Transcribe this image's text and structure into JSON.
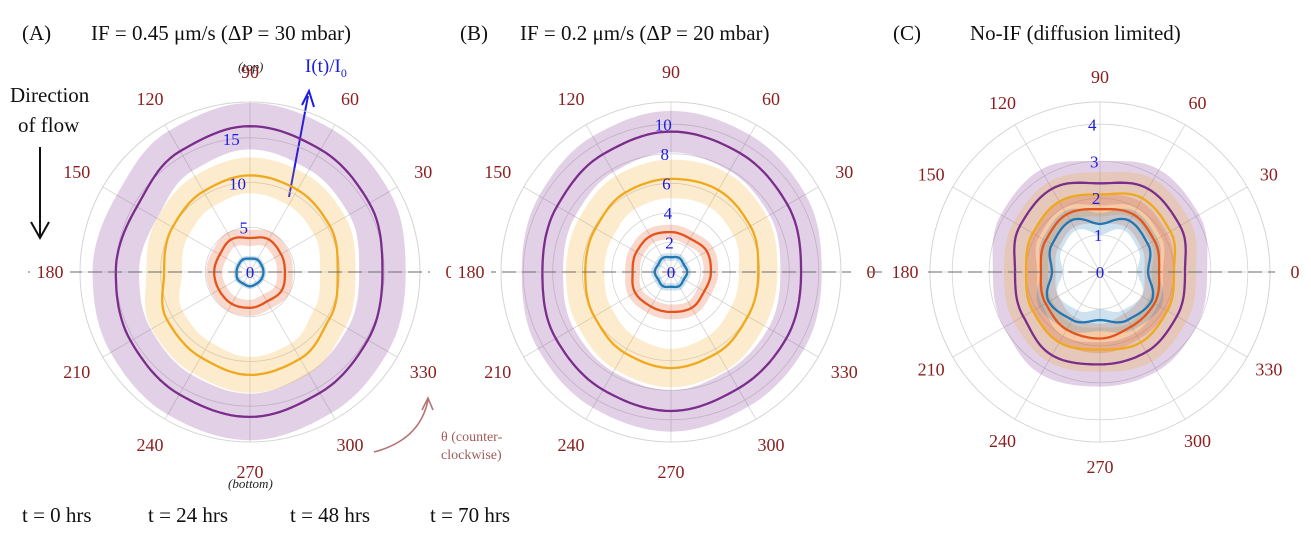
{
  "chart_data": [
    {
      "type": "polar",
      "panel_label": "(A)",
      "title": "IF = 0.45 μm/s (ΔP = 30 mbar)",
      "angle_ticks": [
        "0",
        "30",
        "60",
        "90",
        "120",
        "150",
        "180",
        "210",
        "240",
        "270",
        "300",
        "330"
      ],
      "radial_ticks": [
        "0",
        "5",
        "10",
        "15"
      ],
      "r_max": 19,
      "radial_axis_label": "I(t)/I",
      "radial_axis_label_sub": "0",
      "annotation_top": "(top)",
      "annotation_bottom": "(bottom)",
      "theta_note_line1": "θ (counter-",
      "theta_note_line2": "clockwise)",
      "series": [
        {
          "color": "#1f77b4",
          "band": 0.3,
          "r": [
            1.5,
            1.5,
            1.6,
            1.5,
            1.6,
            1.5,
            1.5,
            1.6,
            1.5,
            1.6,
            1.5,
            1.5
          ]
        },
        {
          "color": "#e3541c",
          "band": 0.9,
          "r": [
            3.9,
            4.0,
            4.2,
            3.8,
            4.2,
            3.9,
            4.0,
            4.0,
            4.1,
            4.0,
            3.8,
            4.1
          ]
        },
        {
          "color": "#f0a81c",
          "band": 2.0,
          "r": [
            9.8,
            10.3,
            10.6,
            10.8,
            10.4,
            10.0,
            9.6,
            10.7,
            11.0,
            11.5,
            11.2,
            10.3
          ]
        },
        {
          "color": "#7b2d8b",
          "band": 2.6,
          "r": [
            14.8,
            15.4,
            15.8,
            16.3,
            15.6,
            14.6,
            15.0,
            15.4,
            15.8,
            16.2,
            15.6,
            15.2
          ]
        }
      ]
    },
    {
      "type": "polar",
      "panel_label": "(B)",
      "title": "IF = 0.2 μm/s (ΔP = 20 mbar)",
      "angle_ticks": [
        "0",
        "30",
        "60",
        "90",
        "120",
        "150",
        "180",
        "210",
        "240",
        "270",
        "300",
        "330"
      ],
      "radial_ticks": [
        "0",
        "2",
        "4",
        "6",
        "8",
        "10"
      ],
      "r_max": 11.5,
      "series": [
        {
          "color": "#1f77b4",
          "band": 0.25,
          "r": [
            1.1,
            1.0,
            1.1,
            1.0,
            1.1,
            1.0,
            1.1,
            1.0,
            1.1,
            1.0,
            1.1,
            1.0
          ]
        },
        {
          "color": "#e3541c",
          "band": 0.5,
          "r": [
            2.7,
            2.8,
            2.6,
            2.7,
            2.8,
            2.7,
            2.6,
            2.8,
            2.7,
            2.7,
            2.8,
            2.6
          ]
        },
        {
          "color": "#f0a81c",
          "band": 1.3,
          "r": [
            5.9,
            6.2,
            6.4,
            6.3,
            6.2,
            5.9,
            5.8,
            6.0,
            6.3,
            6.5,
            6.3,
            6.0
          ]
        },
        {
          "color": "#7b2d8b",
          "band": 1.4,
          "r": [
            8.8,
            9.1,
            9.3,
            9.5,
            9.2,
            8.9,
            8.7,
            9.0,
            9.2,
            9.4,
            9.1,
            9.0
          ]
        }
      ]
    },
    {
      "type": "polar",
      "panel_label": "(C)",
      "title": "No-IF (diffusion limited)",
      "angle_ticks": [
        "0",
        "30",
        "60",
        "90",
        "120",
        "150",
        "180",
        "210",
        "240",
        "270",
        "300",
        "330"
      ],
      "radial_ticks": [
        "0",
        "1",
        "2",
        "3",
        "4"
      ],
      "r_max": 4.6,
      "series": [
        {
          "color": "#1f77b4",
          "band": 0.3,
          "r": [
            1.3,
            1.5,
            1.6,
            1.3,
            1.6,
            1.5,
            1.3,
            1.6,
            1.5,
            1.3,
            1.5,
            1.6
          ]
        },
        {
          "color": "#e3541c",
          "band": 0.4,
          "r": [
            1.6,
            1.7,
            1.8,
            1.7,
            1.8,
            1.7,
            1.6,
            1.7,
            1.8,
            1.8,
            1.7,
            1.7
          ]
        },
        {
          "color": "#f0a81c",
          "band": 0.6,
          "r": [
            2.0,
            2.2,
            2.3,
            2.1,
            2.2,
            2.1,
            2.0,
            2.1,
            2.2,
            2.1,
            2.2,
            2.1
          ]
        },
        {
          "color": "#7b2d8b",
          "band": 0.6,
          "r": [
            2.3,
            2.5,
            2.6,
            2.4,
            2.6,
            2.5,
            2.3,
            2.4,
            2.6,
            2.5,
            2.5,
            2.4
          ]
        }
      ]
    }
  ],
  "flow_label_line1": "Direction",
  "flow_label_line2": "of  flow",
  "legend": [
    "t = 0 hrs",
    "t = 24 hrs",
    "t = 48 hrs",
    "t = 70 hrs"
  ],
  "colors": {
    "t0": "#1f77b4",
    "t24": "#e3541c",
    "t48": "#f0a81c",
    "t70": "#7b2d8b",
    "angle_text": "#8b1e1e",
    "radial_text": "#1a1ae6",
    "grid": "#d4d4d4",
    "axis_line": "#6a6a6a"
  }
}
